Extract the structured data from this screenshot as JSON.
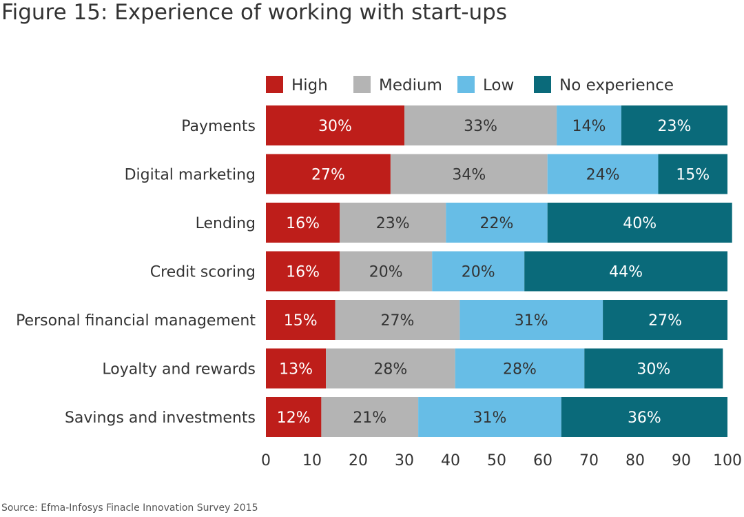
{
  "title": "Figure 15: Experience of working with start-ups",
  "source": "Source: Efma-Infosys Finacle Innovation Survey 2015",
  "chart_data": {
    "type": "bar",
    "orientation": "horizontal",
    "stacked": true,
    "title": "Figure 15: Experience of working with start-ups",
    "xlim": [
      0,
      100
    ],
    "xticks": [
      0,
      10,
      20,
      30,
      40,
      50,
      60,
      70,
      80,
      90,
      100
    ],
    "grid": false,
    "legend_position": "top",
    "categories": [
      "Payments",
      "Digital marketing",
      "Lending",
      "Credit scoring",
      "Personal financial management",
      "Loyalty and rewards",
      "Savings and investments"
    ],
    "series": [
      {
        "name": "High",
        "color": "#BE1E1A",
        "label_style": "light",
        "values": [
          30,
          27,
          16,
          16,
          15,
          13,
          12
        ]
      },
      {
        "name": "Medium",
        "color": "#B4B4B4",
        "label_style": "dark",
        "values": [
          33,
          34,
          23,
          20,
          27,
          28,
          21
        ]
      },
      {
        "name": "Low",
        "color": "#67BDE6",
        "label_style": "dark",
        "values": [
          14,
          24,
          22,
          20,
          31,
          28,
          31
        ]
      },
      {
        "name": "No experience",
        "color": "#0A6A7A",
        "label_style": "light",
        "values": [
          23,
          15,
          40,
          44,
          27,
          30,
          36
        ]
      }
    ],
    "value_suffix": "%"
  }
}
